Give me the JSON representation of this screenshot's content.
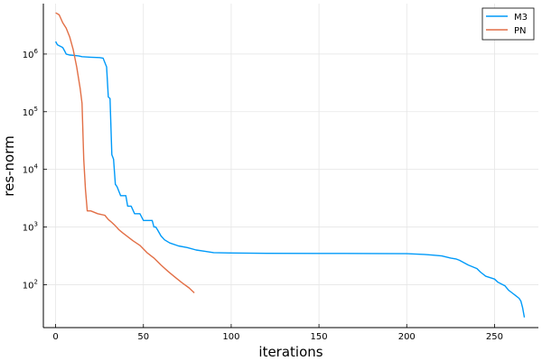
{
  "chart_data": {
    "type": "line",
    "xlabel": "iterations",
    "ylabel": "res-norm",
    "xlim": [
      -7,
      275
    ],
    "ylim": [
      18,
      7500000
    ],
    "yscale": "log",
    "grid": true,
    "legend_position": "top-right",
    "x_ticks": [
      0,
      50,
      100,
      150,
      200,
      250
    ],
    "x_tick_labels": [
      "0",
      "50",
      "100",
      "150",
      "200",
      "250"
    ],
    "y_ticks": [
      100,
      1000,
      10000,
      100000,
      1000000
    ],
    "y_tick_labels": [
      {
        "base": "10",
        "exp": "2"
      },
      {
        "base": "10",
        "exp": "3"
      },
      {
        "base": "10",
        "exp": "4"
      },
      {
        "base": "10",
        "exp": "5"
      },
      {
        "base": "10",
        "exp": "6"
      }
    ],
    "series": [
      {
        "name": "M3",
        "color": "#009af9",
        "x": [
          0,
          1,
          2,
          4,
          5,
          6,
          8,
          10,
          13,
          15,
          20,
          25,
          27,
          29,
          30,
          31,
          32,
          33,
          34,
          35,
          37,
          38,
          40,
          41,
          42,
          43,
          45,
          46,
          47,
          48,
          50,
          51,
          53,
          55,
          56,
          57,
          58,
          60,
          62,
          65,
          70,
          75,
          80,
          85,
          90,
          100,
          120,
          150,
          180,
          200,
          210,
          215,
          220,
          225,
          228,
          230,
          235,
          240,
          242,
          245,
          250,
          252,
          256,
          258,
          260,
          262,
          264,
          265,
          266,
          267
        ],
        "y": [
          1650000,
          1450000,
          1400000,
          1300000,
          1150000,
          1000000,
          960000,
          950000,
          930000,
          900000,
          880000,
          870000,
          850000,
          600000,
          180000,
          170000,
          18000,
          15000,
          5500,
          5000,
          3500,
          3500,
          3500,
          2300,
          2300,
          2300,
          1700,
          1700,
          1700,
          1700,
          1300,
          1300,
          1300,
          1300,
          1000,
          1000,
          900,
          700,
          600,
          530,
          470,
          440,
          400,
          380,
          360,
          355,
          350,
          348,
          347,
          345,
          335,
          325,
          315,
          290,
          280,
          265,
          220,
          190,
          165,
          140,
          125,
          110,
          95,
          80,
          72,
          65,
          58,
          52,
          40,
          27
        ]
      },
      {
        "name": "PN",
        "color": "#e26f46",
        "x": [
          0,
          2,
          4,
          6,
          8,
          10,
          12,
          14,
          15,
          16,
          17,
          18,
          20,
          24,
          26,
          28,
          30,
          32,
          34,
          36,
          38,
          40,
          44,
          48,
          52,
          56,
          60,
          64,
          68,
          72,
          76,
          79
        ],
        "y": [
          5200000,
          4800000,
          3500000,
          2800000,
          2000000,
          1200000,
          600000,
          250000,
          140000,
          15000,
          4500,
          1900,
          1900,
          1700,
          1650,
          1600,
          1350,
          1200,
          1050,
          900,
          800,
          720,
          580,
          480,
          360,
          290,
          220,
          170,
          135,
          108,
          88,
          72
        ]
      }
    ]
  }
}
